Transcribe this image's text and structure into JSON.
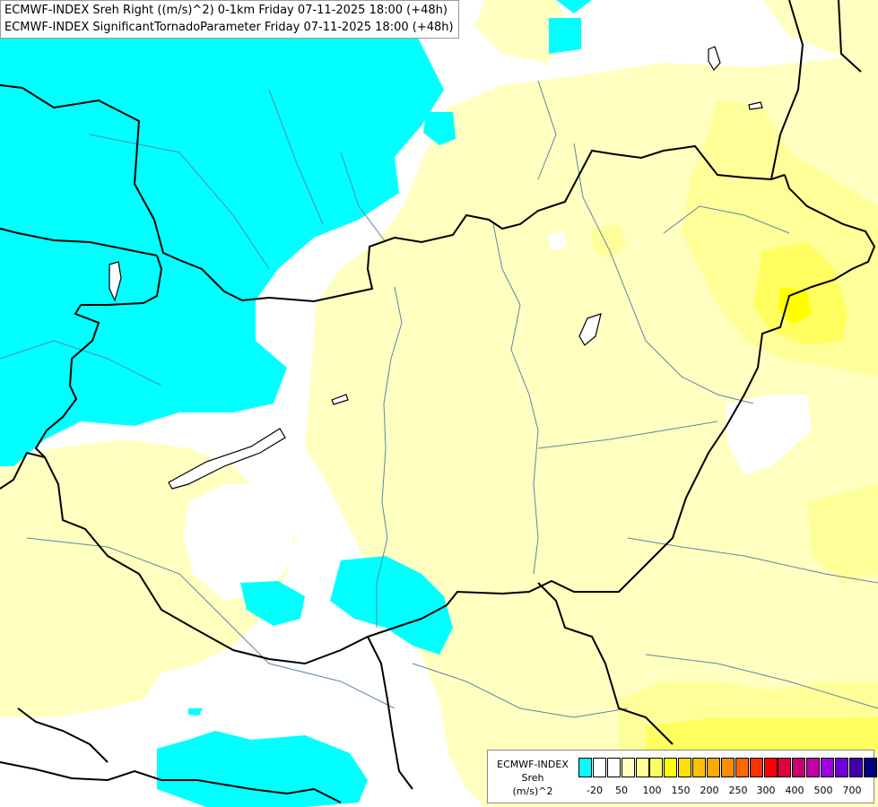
{
  "title": {
    "line1": "ECMWF-INDEX Sreh Right ((m/s)^2) 0-1km Friday 07-11-2025 18:00 (+48h)",
    "line2": "ECMWF-INDEX SignificantTornadoParameter Friday 07-11-2025 18:00 (+48h)"
  },
  "legend": {
    "label_lines": [
      "ECMWF-INDEX",
      "Sreh",
      "(m/s)^2"
    ],
    "ticks": [
      "-20",
      "50",
      "100",
      "150",
      "200",
      "250",
      "300",
      "400",
      "500",
      "700"
    ],
    "colors": [
      "#00ffff",
      "#ffffff",
      "#ffffff",
      "#ffffc0",
      "#ffff9a",
      "#ffff60",
      "#ffff00",
      "#ffe000",
      "#ffc000",
      "#ffa800",
      "#ff8c00",
      "#ff6800",
      "#ff3000",
      "#ff0000",
      "#e00040",
      "#c80070",
      "#c000a8",
      "#a000e0",
      "#7000d8",
      "#4000a8",
      "#000080"
    ]
  },
  "colors": {
    "negative": "#00ffff",
    "pale_yellow": "#ffffc0",
    "light_yellow": "#ffff9a",
    "yellow": "#ffff60",
    "strong_yellow": "#ffff00",
    "border": "#000000",
    "river": "#5f86a4"
  }
}
